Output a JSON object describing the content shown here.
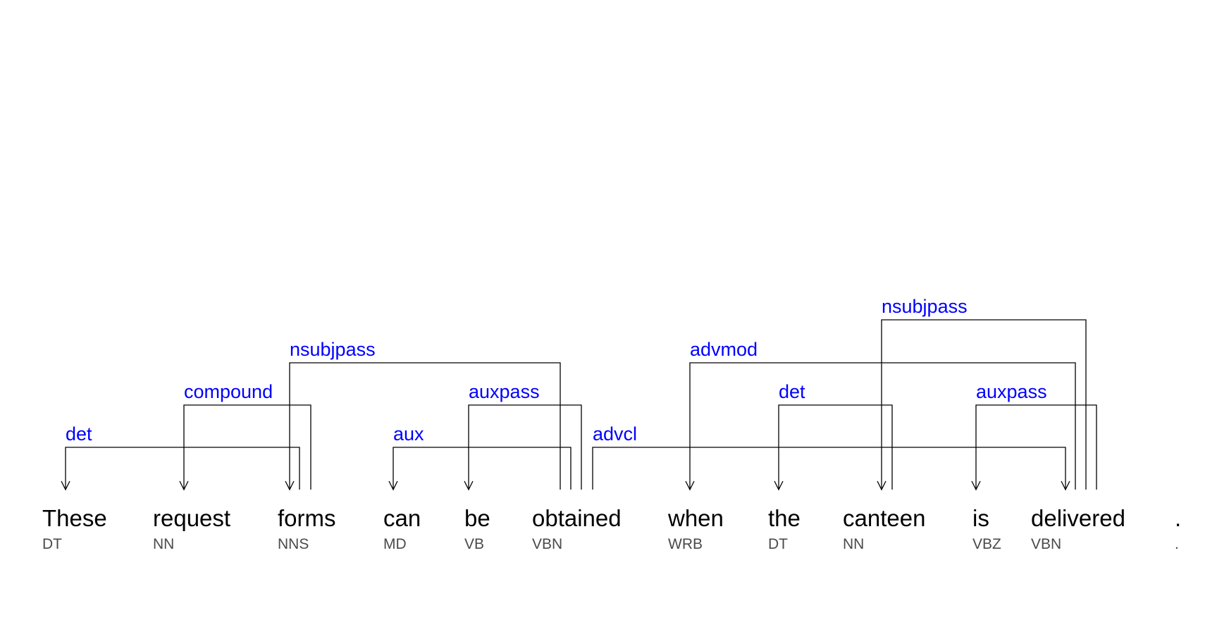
{
  "colors": {
    "label": "#0000ff",
    "arc": "#000000",
    "word": "#000000",
    "tag": "#4a4a4a"
  },
  "tokens": [
    {
      "text": "These",
      "tag": "DT"
    },
    {
      "text": "request",
      "tag": "NN"
    },
    {
      "text": "forms",
      "tag": "NNS"
    },
    {
      "text": "can",
      "tag": "MD"
    },
    {
      "text": "be",
      "tag": "VB"
    },
    {
      "text": "obtained",
      "tag": "VBN"
    },
    {
      "text": "when",
      "tag": "WRB"
    },
    {
      "text": "the",
      "tag": "DT"
    },
    {
      "text": "canteen",
      "tag": "NN"
    },
    {
      "text": "is",
      "tag": "VBZ"
    },
    {
      "text": "delivered",
      "tag": "VBN"
    },
    {
      "text": ".",
      "tag": "."
    }
  ],
  "arcs": [
    {
      "label": "det",
      "head": 2,
      "dependent": 0
    },
    {
      "label": "compound",
      "head": 2,
      "dependent": 1
    },
    {
      "label": "nsubjpass",
      "head": 5,
      "dependent": 2
    },
    {
      "label": "aux",
      "head": 5,
      "dependent": 3
    },
    {
      "label": "auxpass",
      "head": 5,
      "dependent": 4
    },
    {
      "label": "advcl",
      "head": 5,
      "dependent": 10
    },
    {
      "label": "advmod",
      "head": 10,
      "dependent": 6
    },
    {
      "label": "det",
      "head": 8,
      "dependent": 7
    },
    {
      "label": "nsubjpass",
      "head": 10,
      "dependent": 8
    },
    {
      "label": "auxpass",
      "head": 10,
      "dependent": 9
    }
  ]
}
